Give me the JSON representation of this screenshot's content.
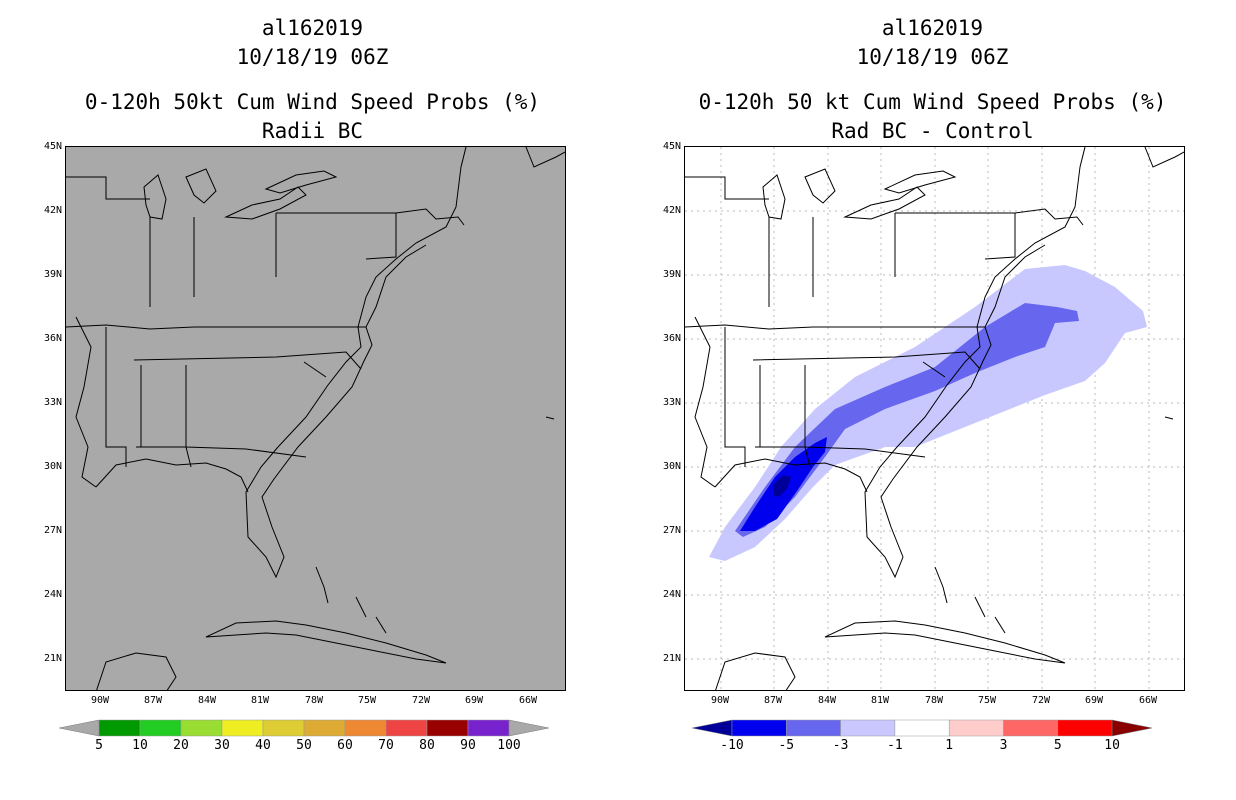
{
  "left_panel": {
    "title_lines": [
      "al162019",
      "10/18/19 06Z",
      "0-120h 50kt Cum Wind Speed Probs (%)",
      "Radii BC"
    ],
    "background": "#a9a9a9",
    "lat_labels": [
      "45N",
      "42N",
      "39N",
      "36N",
      "33N",
      "30N",
      "27N",
      "24N",
      "21N"
    ],
    "lon_labels": [
      "90W",
      "87W",
      "84W",
      "81W",
      "78W",
      "75W",
      "72W",
      "69W",
      "66W"
    ],
    "colorbar": {
      "labels": [
        "5",
        "10",
        "20",
        "30",
        "40",
        "50",
        "60",
        "70",
        "80",
        "90",
        "100"
      ],
      "colors": [
        "#009900",
        "#22cc22",
        "#99dd33",
        "#eeee22",
        "#ddcc33",
        "#ddaa33",
        "#ee8833",
        "#ee4444",
        "#990000",
        "#7722cc"
      ],
      "under_color": "#a9a9a9",
      "over_color": "#a9a9a9"
    }
  },
  "right_panel": {
    "title_lines": [
      "al162019",
      "10/18/19 06Z",
      "0-120h 50 kt Cum Wind Speed Probs (%)",
      "Rad BC - Control"
    ],
    "background": "#ffffff",
    "lat_labels": [
      "45N",
      "42N",
      "39N",
      "36N",
      "33N",
      "30N",
      "27N",
      "24N",
      "21N"
    ],
    "lon_labels": [
      "90W",
      "87W",
      "84W",
      "81W",
      "78W",
      "75W",
      "72W",
      "69W",
      "66W"
    ],
    "colorbar": {
      "labels": [
        "-10",
        "-5",
        "-3",
        "-1",
        "1",
        "3",
        "5",
        "10"
      ],
      "colors": [
        "#0000ee",
        "#6666ee",
        "#c8c8ff",
        "#ffffff",
        "#ffcccc",
        "#ff6666",
        "#ff0000"
      ],
      "under_color": "#000099",
      "over_color": "#880000"
    },
    "shading_colors": {
      "light": "#c8c8ff",
      "medium": "#6666ee",
      "strong": "#0000ee",
      "darkest": "#000099"
    }
  }
}
